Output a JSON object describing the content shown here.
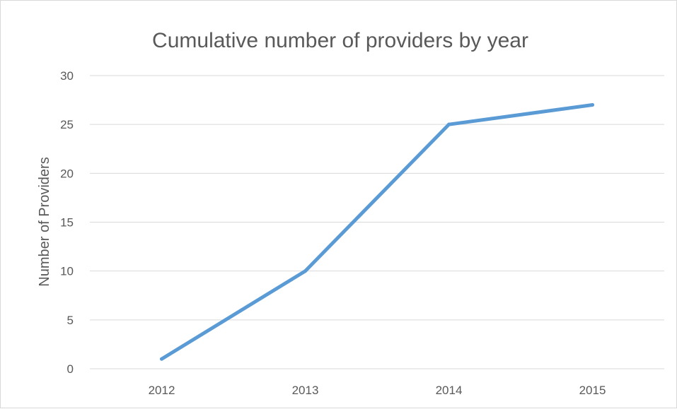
{
  "chart_data": {
    "type": "line",
    "title": "Cumulative number of providers by year",
    "xlabel": "",
    "ylabel": "Number of Providers",
    "categories": [
      "2012",
      "2013",
      "2014",
      "2015"
    ],
    "series": [
      {
        "values": [
          1,
          10,
          25,
          27
        ]
      }
    ],
    "ylim": [
      0,
      30
    ],
    "yticks": [
      0,
      5,
      10,
      15,
      20,
      25,
      30
    ],
    "grid": true,
    "legend": "none",
    "colors": {
      "series": "#5b9bd5",
      "gridline": "#d9d9d9",
      "text": "#595959"
    }
  }
}
